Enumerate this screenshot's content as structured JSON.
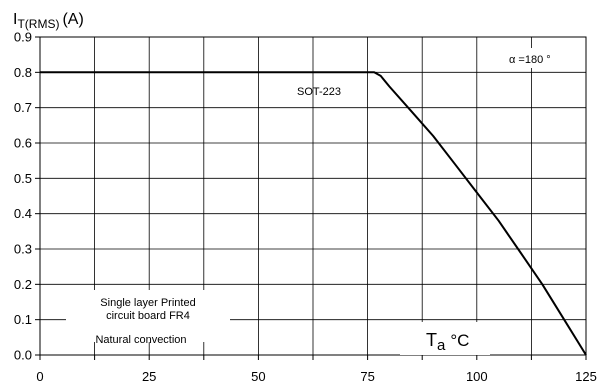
{
  "chart_data": {
    "type": "line",
    "title": "",
    "ylabel_main": "I",
    "ylabel_sub": "T(RMS)",
    "ylabel_unit": "(A)",
    "xlabel_main": "T",
    "xlabel_sub": "a",
    "xlabel_unit": "°C",
    "xlim": [
      0,
      125
    ],
    "ylim": [
      0,
      0.9
    ],
    "x_ticks": [
      0,
      25,
      50,
      75,
      100,
      125
    ],
    "x_tick_labels": [
      "0",
      "25",
      "50",
      "75",
      "100",
      "125"
    ],
    "y_ticks": [
      0,
      0.1,
      0.2,
      0.3,
      0.4,
      0.5,
      0.6,
      0.7,
      0.8,
      0.9
    ],
    "y_tick_labels": [
      "0.0",
      "0.1",
      "0.2",
      "0.3",
      "0.4",
      "0.5",
      "0.6",
      "0.7",
      "0.8",
      "0.9"
    ],
    "grid": true,
    "series": [
      {
        "name": "SOT-223",
        "x": [
          0,
          75,
          76.5,
          78,
          80,
          85,
          90,
          95,
          100,
          105,
          110,
          115,
          120,
          123,
          125
        ],
        "y": [
          0.8,
          0.8,
          0.8,
          0.79,
          0.76,
          0.69,
          0.62,
          0.54,
          0.46,
          0.38,
          0.29,
          0.2,
          0.1,
          0.04,
          0.0
        ]
      }
    ],
    "annotations": {
      "series_label": "SOT-223",
      "angle": "α =180 °",
      "board_line1": "Single layer Printed",
      "board_line2": "circuit board FR4",
      "convection": "Natural convection"
    }
  }
}
